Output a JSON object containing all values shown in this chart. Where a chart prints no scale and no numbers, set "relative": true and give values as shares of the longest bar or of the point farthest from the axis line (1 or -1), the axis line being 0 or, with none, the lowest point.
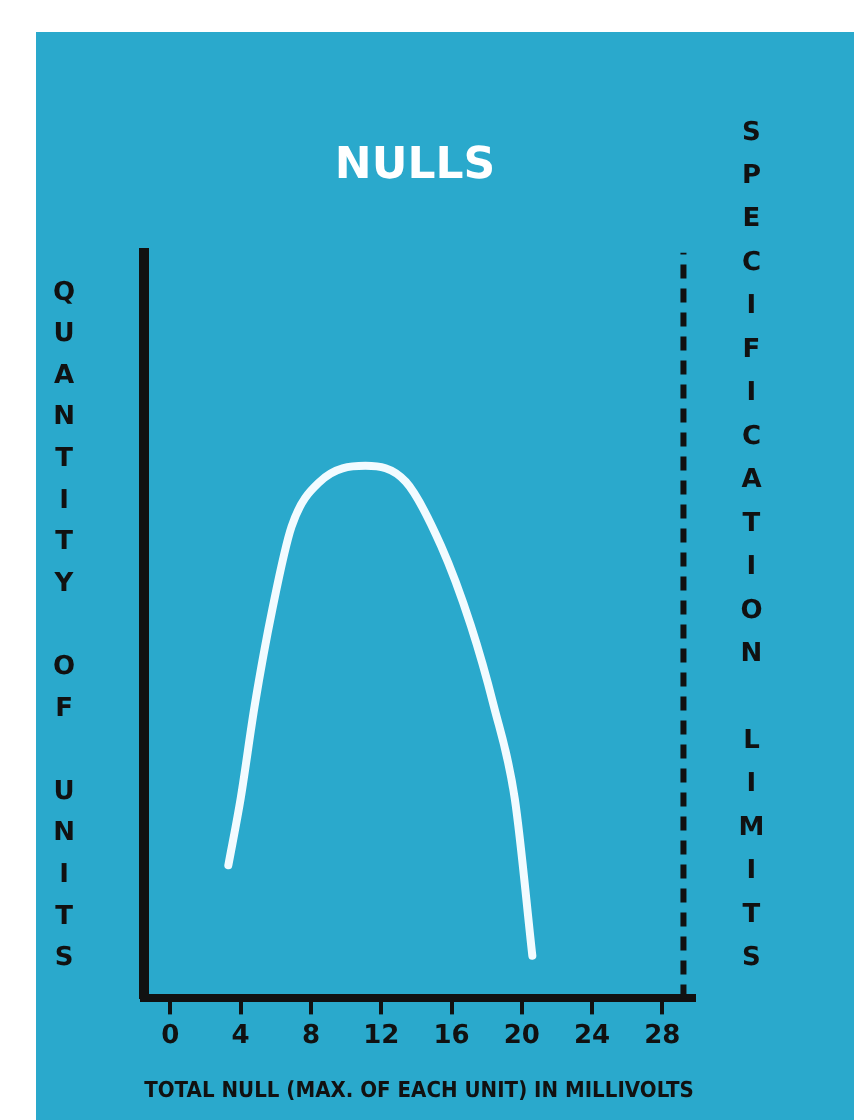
{
  "chart_data": {
    "type": "line",
    "title": "NULLS",
    "xlabel": "TOTAL NULL (MAX. OF EACH UNIT) IN MILLIVOLTS",
    "ylabel": "QUANTITY OF UNITS",
    "relative": true,
    "xlim": [
      -1.5,
      29.8
    ],
    "xticks": [
      0,
      4,
      8,
      12,
      16,
      20,
      24,
      28
    ],
    "marker": "none",
    "line_style": "solid",
    "series": [
      {
        "color": "#f2fbff",
        "x": [
          3.3,
          4.0,
          4.8,
          5.8,
          6.9,
          8.5,
          11.1,
          13.4,
          15.4,
          17.1,
          18.4,
          19.6,
          20.6
        ],
        "values": [
          0.25,
          0.375,
          0.55,
          0.73,
          0.886,
          0.97,
          1.0,
          0.97,
          0.85,
          0.7,
          0.55,
          0.375,
          0.08
        ]
      }
    ],
    "ref_lines": [
      {
        "axis": "x",
        "value": 29.2,
        "label": "SPECIFICATION LIMITS",
        "color": "#111111",
        "line_style": "dashed"
      }
    ]
  }
}
